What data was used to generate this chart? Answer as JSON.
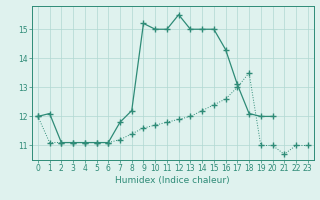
{
  "xlabel": "Humidex (Indice chaleur)",
  "x_values": [
    0,
    1,
    2,
    3,
    4,
    5,
    6,
    7,
    8,
    9,
    10,
    11,
    12,
    13,
    14,
    15,
    16,
    17,
    18,
    19,
    20,
    21,
    22,
    23
  ],
  "y_solid": [
    12.0,
    12.1,
    11.1,
    11.1,
    11.1,
    11.1,
    11.1,
    11.8,
    12.2,
    15.2,
    15.0,
    15.0,
    15.5,
    15.0,
    15.0,
    15.0,
    14.3,
    13.1,
    12.1,
    12.0,
    12.0,
    null,
    null,
    null
  ],
  "y_dotted": [
    12.0,
    11.1,
    11.1,
    11.1,
    11.1,
    11.1,
    11.1,
    11.2,
    11.4,
    11.6,
    11.7,
    11.8,
    11.9,
    12.0,
    12.2,
    12.4,
    12.6,
    13.0,
    13.5,
    11.0,
    11.0,
    10.7,
    11.0,
    11.0
  ],
  "line_color": "#2e8b77",
  "marker": "+",
  "markersize": 4,
  "markeredgewidth": 1.0,
  "linewidth_solid": 0.9,
  "linewidth_dotted": 0.7,
  "bg_color": "#dff2ee",
  "grid_color": "#b0d8d2",
  "ylim": [
    10.5,
    15.8
  ],
  "yticks": [
    11,
    12,
    13,
    14,
    15
  ],
  "xlim": [
    -0.5,
    23.5
  ],
  "xticks": [
    0,
    1,
    2,
    3,
    4,
    5,
    6,
    7,
    8,
    9,
    10,
    11,
    12,
    13,
    14,
    15,
    16,
    17,
    18,
    19,
    20,
    21,
    22,
    23
  ]
}
